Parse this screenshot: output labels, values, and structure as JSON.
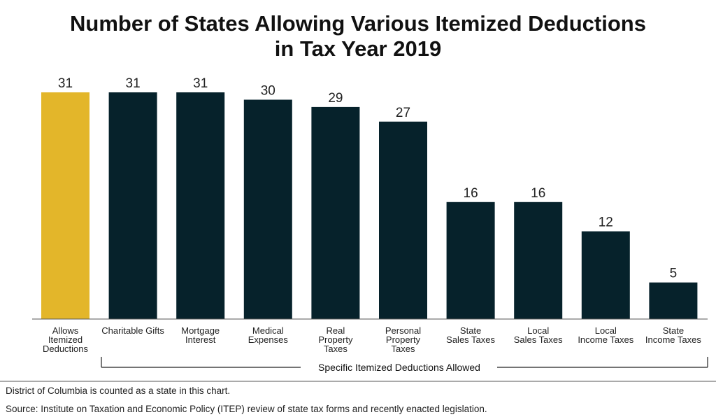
{
  "chart_data": {
    "type": "bar",
    "title_line1": "Number of States Allowing Various Itemized Deductions",
    "title_line2": "in Tax Year 2019",
    "categories": [
      [
        "Allows",
        "Itemized",
        "Deductions"
      ],
      [
        "Charitable Gifts"
      ],
      [
        "Mortgage",
        "Interest"
      ],
      [
        "Medical",
        "Expenses"
      ],
      [
        "Real",
        "Property",
        "Taxes"
      ],
      [
        "Personal",
        "Property",
        "Taxes"
      ],
      [
        "State",
        "Sales Taxes"
      ],
      [
        "Local",
        "Sales Taxes"
      ],
      [
        "Local",
        "Income Taxes"
      ],
      [
        "State",
        "Income Taxes"
      ]
    ],
    "values": [
      31,
      31,
      31,
      30,
      29,
      27,
      16,
      16,
      12,
      5
    ],
    "ylim": [
      0,
      31
    ],
    "bar_colors": [
      "#e3b62a",
      "#06222b",
      "#06222b",
      "#06222b",
      "#06222b",
      "#06222b",
      "#06222b",
      "#06222b",
      "#06222b",
      "#06222b"
    ],
    "group_label": "Specific Itemized Deductions Allowed",
    "xlabel": "",
    "ylabel": ""
  },
  "footnote": "District of Columbia is counted as a state in this chart.",
  "source": "Source: Institute on Taxation and Economic Policy (ITEP) review of state tax forms and recently enacted legislation."
}
